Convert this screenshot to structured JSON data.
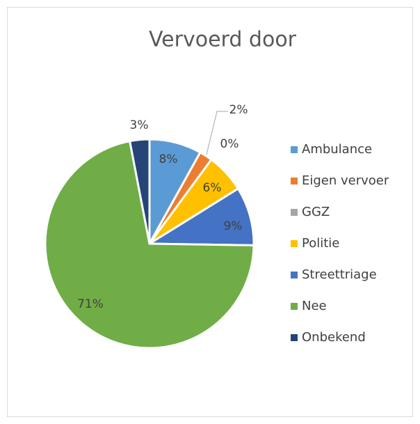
{
  "chart_data": {
    "type": "pie",
    "title": "Vervoerd door",
    "categories": [
      "Ambulance",
      "Eigen vervoer",
      "GGZ",
      "Politie",
      "Streettriage",
      "Nee",
      "Onbekend"
    ],
    "values": [
      8,
      2,
      0,
      6,
      9,
      71,
      3
    ],
    "value_labels": [
      "8%",
      "2%",
      "0%",
      "6%",
      "9%",
      "71%",
      "3%"
    ],
    "colors": [
      "#5b9bd5",
      "#ed7d31",
      "#a5a5a5",
      "#ffc000",
      "#4472c4",
      "#70ad47",
      "#264478"
    ],
    "legend": "right"
  }
}
